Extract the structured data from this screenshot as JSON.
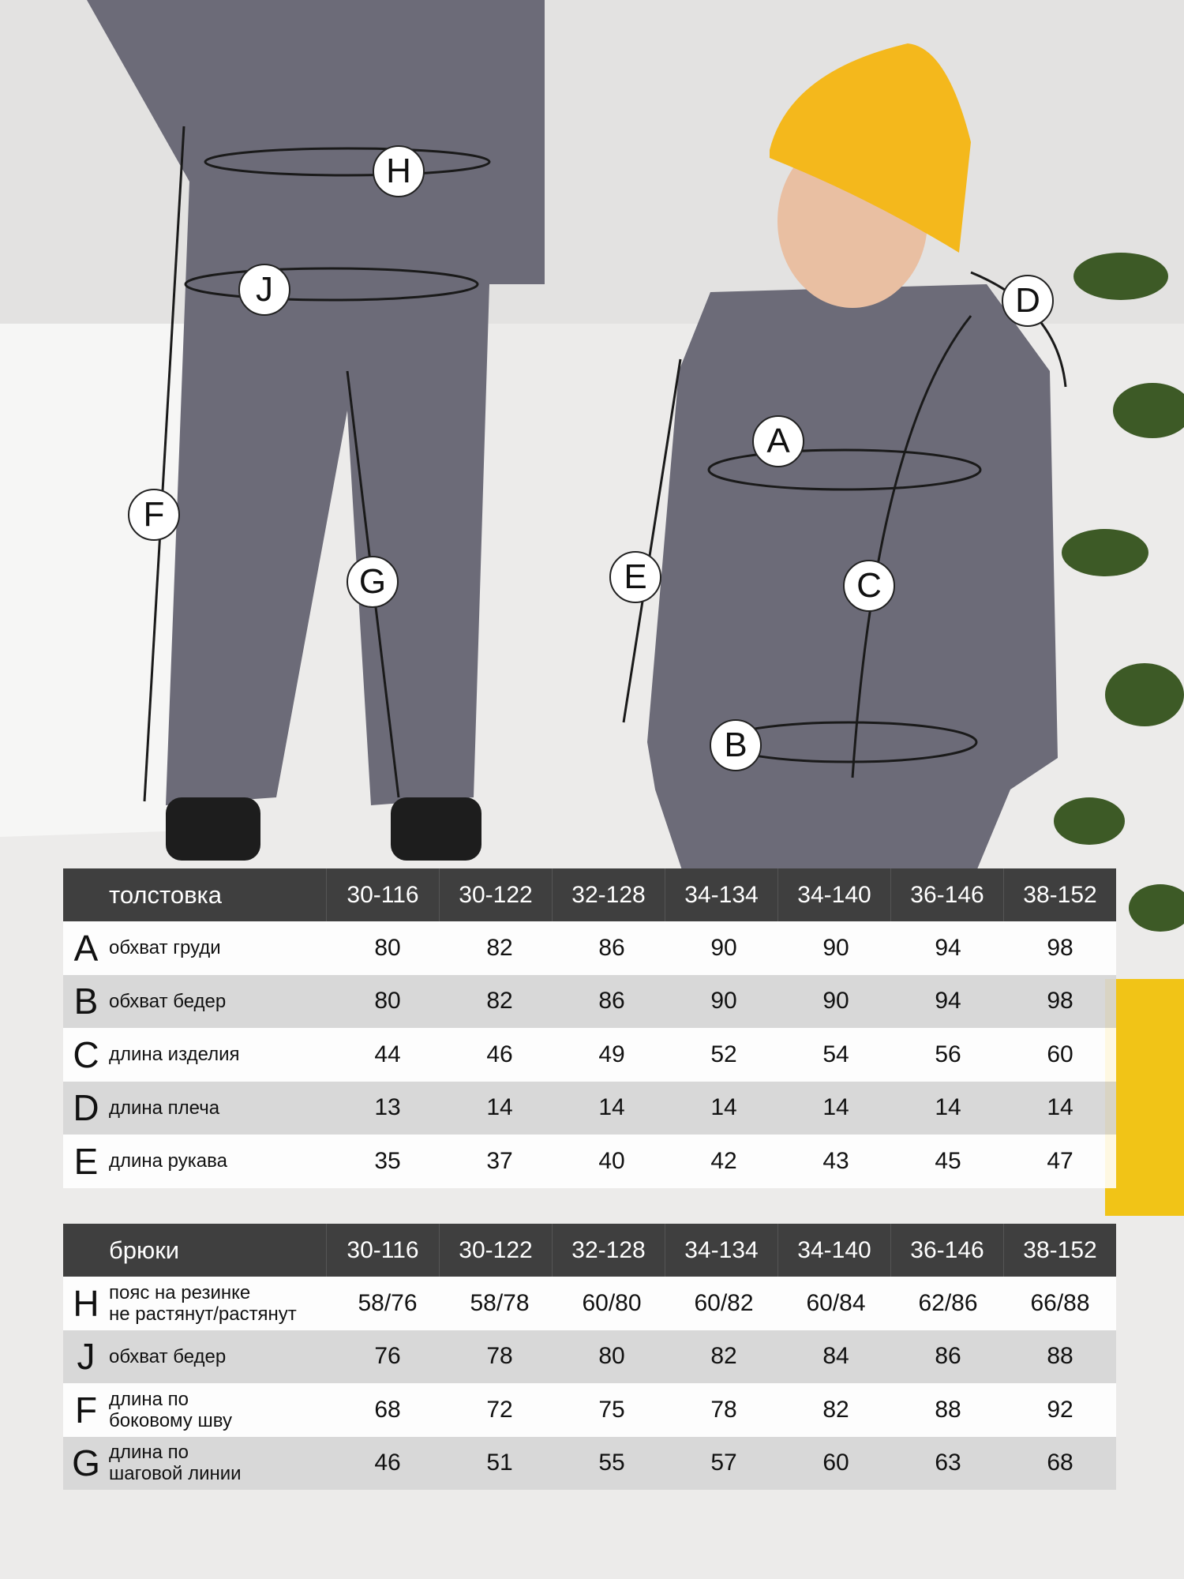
{
  "colors": {
    "header_bg": "#3f3f3f",
    "hat": "#f4b81c",
    "fleece": "#6c6b78",
    "plant": "#3d5a26",
    "pot": "#f1c417"
  },
  "markers": [
    "H",
    "J",
    "F",
    "G",
    "A",
    "D",
    "E",
    "C",
    "B"
  ],
  "sizes": [
    "30-116",
    "30-122",
    "32-128",
    "34-134",
    "34-140",
    "36-146",
    "38-152"
  ],
  "hoodie": {
    "title": "толстовка",
    "rows": [
      {
        "letter": "A",
        "name": "обхват груди",
        "values": [
          "80",
          "82",
          "86",
          "90",
          "90",
          "94",
          "98"
        ]
      },
      {
        "letter": "B",
        "name": "обхват бедер",
        "values": [
          "80",
          "82",
          "86",
          "90",
          "90",
          "94",
          "98"
        ]
      },
      {
        "letter": "C",
        "name": "длина изделия",
        "values": [
          "44",
          "46",
          "49",
          "52",
          "54",
          "56",
          "60"
        ]
      },
      {
        "letter": "D",
        "name": "длина плеча",
        "values": [
          "13",
          "14",
          "14",
          "14",
          "14",
          "14",
          "14"
        ]
      },
      {
        "letter": "E",
        "name": "длина рукава",
        "values": [
          "35",
          "37",
          "40",
          "42",
          "43",
          "45",
          "47"
        ]
      }
    ]
  },
  "pants": {
    "title": "брюки",
    "rows": [
      {
        "letter": "H",
        "name": "пояс на резинке\nне растянут/растянут",
        "values": [
          "58/76",
          "58/78",
          "60/80",
          "60/82",
          "60/84",
          "62/86",
          "66/88"
        ]
      },
      {
        "letter": "J",
        "name": "обхват бедер",
        "values": [
          "76",
          "78",
          "80",
          "82",
          "84",
          "86",
          "88"
        ]
      },
      {
        "letter": "F",
        "name": "длина по\nбоковому шву",
        "values": [
          "68",
          "72",
          "75",
          "78",
          "82",
          "88",
          "92"
        ]
      },
      {
        "letter": "G",
        "name": "длина по\nшаговой линии",
        "values": [
          "46",
          "51",
          "55",
          "57",
          "60",
          "63",
          "68"
        ]
      }
    ]
  }
}
